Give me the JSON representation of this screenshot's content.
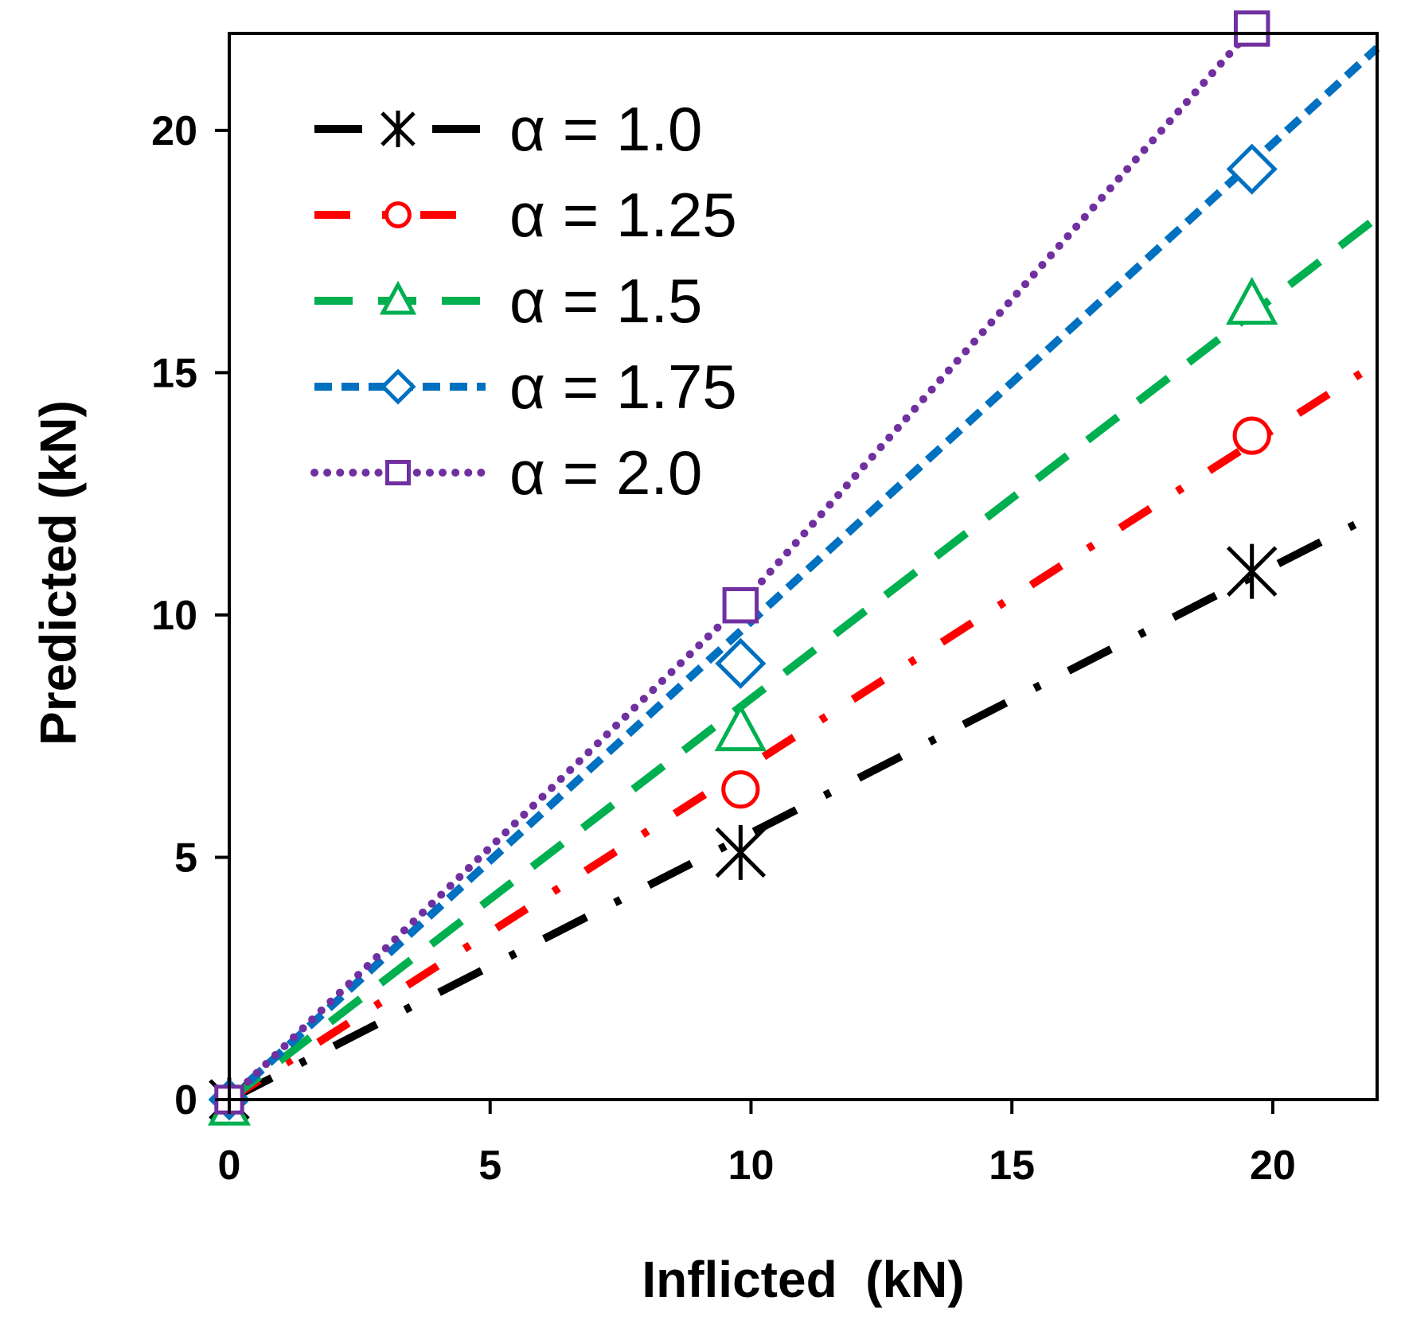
{
  "chart_data": {
    "type": "line",
    "title": "",
    "xlabel": "Inflicted  (kN)",
    "ylabel": "Predicted (kN)",
    "xlim": [
      0,
      22
    ],
    "ylim": [
      0,
      22
    ],
    "xticks": [
      0,
      5,
      10,
      15,
      20
    ],
    "yticks": [
      0,
      5,
      10,
      15,
      20
    ],
    "x_tick_labels": [
      "0",
      "5",
      "10",
      "15",
      "20"
    ],
    "y_tick_labels": [
      "0",
      "5",
      "10",
      "15",
      "20"
    ],
    "grid": false,
    "legend_position": "top-left",
    "series": [
      {
        "name": "α = 1.0",
        "color": "#000000",
        "dash": "long-dash-dot",
        "marker": "asterisk",
        "line_x": [
          0,
          22
        ],
        "line_y": [
          0,
          12.1
        ],
        "marker_x": [
          0,
          9.8,
          19.6
        ],
        "marker_y": [
          0,
          5.1,
          10.9
        ]
      },
      {
        "name": "α = 1.25",
        "color": "#ff0000",
        "dash": "dash-dot",
        "marker": "circle",
        "line_x": [
          0,
          22
        ],
        "line_y": [
          0,
          15.2
        ],
        "marker_x": [
          0,
          9.8,
          19.6
        ],
        "marker_y": [
          0,
          6.4,
          13.7
        ]
      },
      {
        "name": "α = 1.5",
        "color": "#00b050",
        "dash": "long-dash",
        "marker": "triangle",
        "line_x": [
          0,
          22
        ],
        "line_y": [
          0,
          18.2
        ],
        "marker_x": [
          0,
          9.8,
          19.6
        ],
        "marker_y": [
          -0.2,
          7.6,
          16.4
        ]
      },
      {
        "name": "α = 1.75",
        "color": "#0070c0",
        "dash": "dash",
        "marker": "diamond",
        "line_x": [
          0,
          22
        ],
        "line_y": [
          0,
          21.7
        ],
        "marker_x": [
          0,
          9.8,
          19.6
        ],
        "marker_y": [
          0,
          9.0,
          19.2
        ]
      },
      {
        "name": "α = 2.0",
        "color": "#7030a0",
        "dash": "dot",
        "marker": "square",
        "line_x": [
          0,
          9.8,
          19.6
        ],
        "line_y": [
          0,
          10.2,
          22.1
        ],
        "marker_x": [
          0,
          9.8,
          19.6
        ],
        "marker_y": [
          0,
          10.2,
          22.1
        ]
      }
    ]
  }
}
